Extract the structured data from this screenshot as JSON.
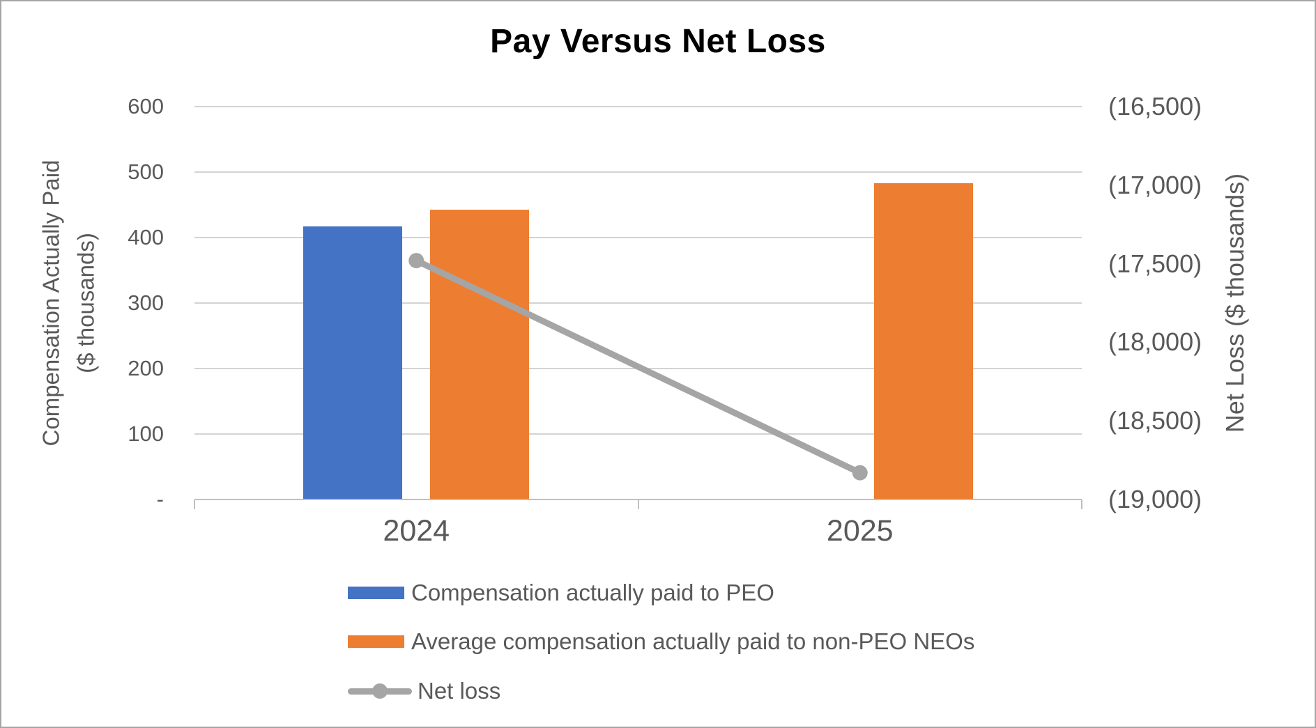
{
  "chart_data": {
    "type": "combo-bar-line",
    "title": "Pay Versus Net Loss",
    "categories": [
      "2024",
      "2025"
    ],
    "bar_series": [
      {
        "name": "Compensation actually paid to PEO",
        "color": "#4472C4",
        "axis": "left",
        "values": [
          417,
          null
        ]
      },
      {
        "name": "Average compensation actually paid to non-PEO NEOs",
        "color": "#ED7D31",
        "axis": "left",
        "values": [
          443,
          483
        ]
      }
    ],
    "line_series": [
      {
        "name": "Net loss",
        "color": "#A5A5A5",
        "axis": "right",
        "values": [
          -17480,
          -18830
        ]
      }
    ],
    "axes": {
      "left": {
        "title": "Compensation Actually Paid ($ thousands)",
        "title_lines": [
          "Compensation Actually Paid",
          "($ thousands)"
        ],
        "min": 0,
        "max": 600,
        "ticks": [
          "600",
          "500",
          "400",
          "300",
          "200",
          "100",
          "-"
        ]
      },
      "right": {
        "title": "Net Loss ($ thousands)",
        "top_value": -16500,
        "bottom_value": -19000,
        "ticks": [
          "(16,500)",
          "(17,000)",
          "(17,500)",
          "(18,000)",
          "(18,500)",
          "(19,000)"
        ]
      },
      "x": {
        "labels": [
          "2024",
          "2025"
        ]
      }
    },
    "gridlines": true,
    "legend_position": "bottom-left"
  },
  "styles": {
    "title_color": "#000000",
    "text_color": "#595959",
    "gridline_color": "#D3D3D3",
    "axis_line_color": "#BFBFBF",
    "bar_blue": "#4472C4",
    "bar_orange": "#ED7D31",
    "line_gray": "#A5A5A5",
    "background": "#FFFFFF",
    "border_color": "#A6A6A6"
  }
}
